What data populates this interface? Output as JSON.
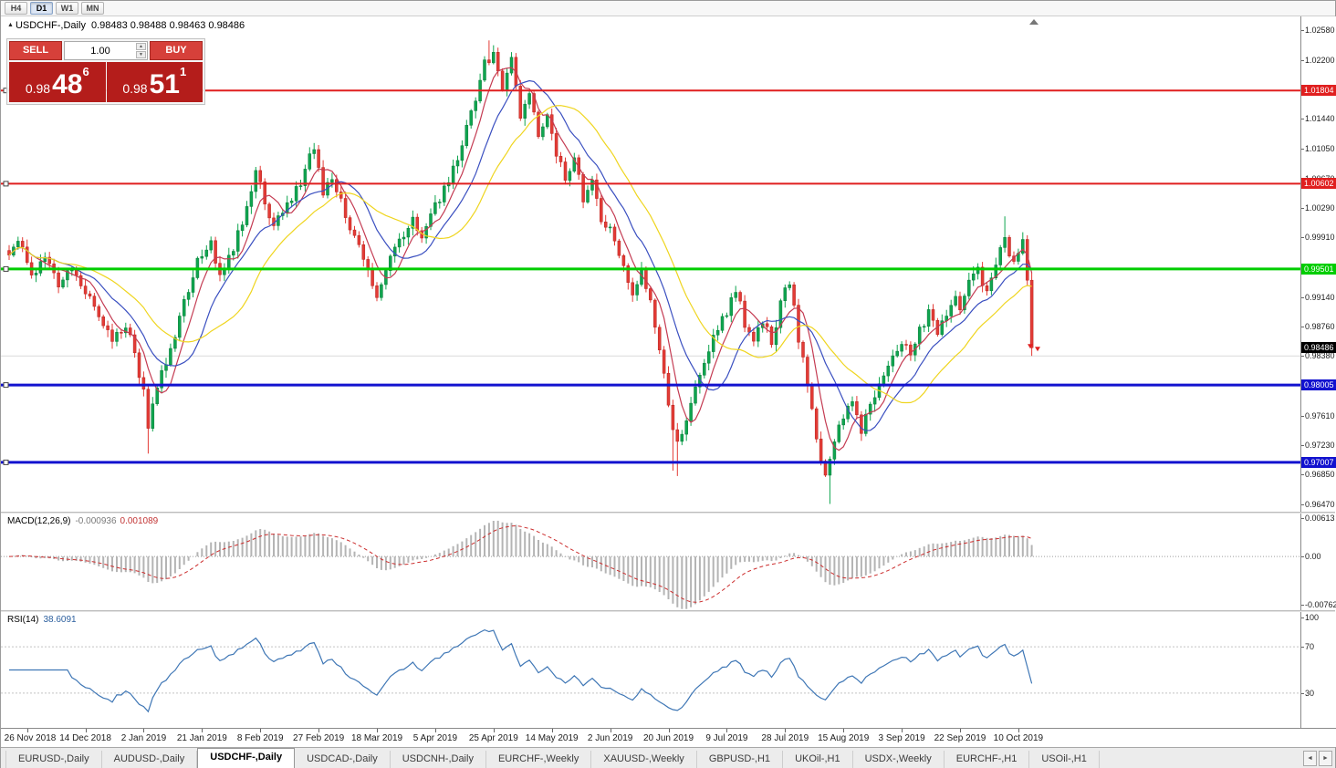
{
  "toolbar": {
    "timeframes": [
      "H4",
      "D1",
      "W1",
      "MN"
    ],
    "active": "D1"
  },
  "chart_header": {
    "symbol": "USDCHF-,Daily",
    "ohlc": "0.98483 0.98488 0.98463 0.98486"
  },
  "trade_panel": {
    "sell_label": "SELL",
    "buy_label": "BUY",
    "volume": "1.00",
    "sell_price": {
      "small": "0.98",
      "big": "48",
      "sup": "6"
    },
    "buy_price": {
      "small": "0.98",
      "big": "51",
      "sup": "1"
    }
  },
  "icons": {
    "spinner_up": "▲",
    "spinner_down": "▼",
    "collapse": "▲",
    "scroll_left": "◄",
    "scroll_right": "►",
    "end_marker": "▲"
  },
  "colors": {
    "candle_up": "#0fa54f",
    "candle_up_border": "#0a7a3a",
    "candle_down": "#e33b36",
    "candle_down_border": "#b5241f",
    "ma_fast_red": "#c43b52",
    "ma_mid_blue": "#3a4fc0",
    "ma_slow_yellow": "#efd51f",
    "level_red": "#e01f1f",
    "level_green": "#00cd00",
    "level_blue": "#1212cf",
    "minor_gray": "#d9d9d9",
    "macd_hist": "#b4b4b4",
    "macd_signal": "#cc2e2e",
    "rsi_line": "#3e76b5",
    "badge_black": "#000000",
    "arrow_red": "#e02020"
  },
  "indicators": {
    "macd": {
      "title": "MACD(12,26,9)",
      "value_main": "-0.000936",
      "value_signal": "0.001089",
      "fast": 12,
      "slow": 26,
      "signal": 9,
      "scale_labels": [
        {
          "v": 0.00613,
          "t": "0.00613"
        },
        {
          "v": 0,
          "t": "0.00"
        },
        {
          "v": -0.00762,
          "t": "-0.00762"
        }
      ],
      "view_max": 0.0068,
      "view_min": -0.0085
    },
    "rsi": {
      "title": "RSI(14)",
      "value": "38.6091",
      "period": 14,
      "levels": [
        70,
        30
      ],
      "scale_labels": [
        {
          "v": 100,
          "t": "100"
        },
        {
          "v": 70,
          "t": "70"
        },
        {
          "v": 30,
          "t": "30"
        }
      ],
      "range": [
        0,
        100
      ]
    }
  },
  "chart_data": {
    "type": "candlestick",
    "symbol": "USDCHF",
    "timeframe": "Daily",
    "bars_total": 229,
    "last_price": 0.98486,
    "price_range": {
      "min": 0.9637,
      "max": 1.0276
    },
    "y_ticks": [
      1.0258,
      1.022,
      1.0144,
      1.0105,
      1.0067,
      1.0029,
      0.9991,
      0.9914,
      0.9876,
      0.9838,
      0.9761,
      0.9723,
      0.9685,
      0.9647
    ],
    "levels": [
      {
        "price": 1.01804,
        "label": "1.01804",
        "color": "#e01f1f",
        "width": 2,
        "badge": true
      },
      {
        "price": 1.00602,
        "label": "1.00602",
        "color": "#e01f1f",
        "width": 2,
        "badge": true
      },
      {
        "price": 0.99501,
        "label": "0.99501",
        "color": "#00cd00",
        "width": 3,
        "badge": true
      },
      {
        "price": 0.98005,
        "label": "0.98005",
        "color": "#1212cf",
        "width": 3,
        "badge": true
      },
      {
        "price": 0.97007,
        "label": "0.97007",
        "color": "#1212cf",
        "width": 3,
        "badge": true
      },
      {
        "price": 0.9838,
        "label": "",
        "color": "#d9d9d9",
        "width": 1,
        "badge": false
      }
    ],
    "moving_averages": [
      {
        "period": 6,
        "color": "#c43b52"
      },
      {
        "period": 13,
        "color": "#3a4fc0"
      },
      {
        "period": 24,
        "color": "#efd51f"
      }
    ],
    "x_axis": {
      "labels": [
        "26 Nov 2018",
        "14 Dec 2018",
        "2 Jan 2019",
        "21 Jan 2019",
        "8 Feb 2019",
        "27 Feb 2019",
        "18 Mar 2019",
        "5 Apr 2019",
        "25 Apr 2019",
        "14 May 2019",
        "2 Jun 2019",
        "20 Jun 2019",
        "9 Jul 2019",
        "28 Jul 2019",
        "15 Aug 2019",
        "3 Sep 2019",
        "22 Sep 2019",
        "10 Oct 2019"
      ],
      "label_indices": [
        4,
        17,
        30,
        43,
        56,
        69,
        82,
        95,
        108,
        121,
        134,
        147,
        160,
        173,
        186,
        199,
        212,
        225
      ]
    },
    "price_anchors": [
      [
        0,
        0.9968
      ],
      [
        2,
        0.999
      ],
      [
        5,
        0.994
      ],
      [
        8,
        0.9968
      ],
      [
        11,
        0.993
      ],
      [
        14,
        0.9955
      ],
      [
        17,
        0.992
      ],
      [
        20,
        0.989
      ],
      [
        23,
        0.9862
      ],
      [
        26,
        0.988
      ],
      [
        28,
        0.984
      ],
      [
        30,
        0.979
      ],
      [
        31,
        0.9742
      ],
      [
        33,
        0.98
      ],
      [
        36,
        0.9845
      ],
      [
        39,
        0.9905
      ],
      [
        42,
        0.996
      ],
      [
        45,
        0.9985
      ],
      [
        47,
        0.994
      ],
      [
        50,
        0.9975
      ],
      [
        53,
        1.003
      ],
      [
        55,
        1.008
      ],
      [
        57,
        1.004
      ],
      [
        59,
        1.0005
      ],
      [
        62,
        1.0035
      ],
      [
        65,
        1.0058
      ],
      [
        68,
        1.011
      ],
      [
        70,
        1.005
      ],
      [
        72,
        1.0065
      ],
      [
        75,
        1.002
      ],
      [
        78,
        0.9975
      ],
      [
        81,
        0.993
      ],
      [
        82,
        0.9912
      ],
      [
        84,
        0.995
      ],
      [
        87,
        0.9985
      ],
      [
        90,
        1.002
      ],
      [
        92,
        0.999
      ],
      [
        95,
        1.003
      ],
      [
        98,
        1.0065
      ],
      [
        101,
        1.011
      ],
      [
        104,
        1.017
      ],
      [
        106,
        1.0215
      ],
      [
        108,
        1.023
      ],
      [
        110,
        1.0175
      ],
      [
        112,
        1.022
      ],
      [
        114,
        1.015
      ],
      [
        116,
        1.018
      ],
      [
        118,
        1.012
      ],
      [
        120,
        1.015
      ],
      [
        122,
        1.01
      ],
      [
        124,
        1.007
      ],
      [
        126,
        1.0095
      ],
      [
        128,
        1.004
      ],
      [
        130,
        1.0065
      ],
      [
        132,
        1.001
      ],
      [
        134,
        1.0
      ],
      [
        136,
        0.9965
      ],
      [
        139,
        0.992
      ],
      [
        141,
        0.995
      ],
      [
        143,
        0.9905
      ],
      [
        145,
        0.985
      ],
      [
        147,
        0.977
      ],
      [
        149,
        0.9725
      ],
      [
        151,
        0.976
      ],
      [
        154,
        0.9815
      ],
      [
        157,
        0.986
      ],
      [
        160,
        0.9895
      ],
      [
        162,
        0.9925
      ],
      [
        164,
        0.988
      ],
      [
        166,
        0.9855
      ],
      [
        168,
        0.9885
      ],
      [
        170,
        0.9855
      ],
      [
        172,
        0.9905
      ],
      [
        174,
        0.9935
      ],
      [
        176,
        0.986
      ],
      [
        178,
        0.98
      ],
      [
        180,
        0.973
      ],
      [
        182,
        0.968
      ],
      [
        184,
        0.9725
      ],
      [
        186,
        0.976
      ],
      [
        188,
        0.9785
      ],
      [
        190,
        0.974
      ],
      [
        192,
        0.9775
      ],
      [
        194,
        0.9805
      ],
      [
        196,
        0.983
      ],
      [
        199,
        0.9855
      ],
      [
        201,
        0.984
      ],
      [
        203,
        0.987
      ],
      [
        205,
        0.9895
      ],
      [
        207,
        0.9865
      ],
      [
        209,
        0.989
      ],
      [
        211,
        0.992
      ],
      [
        212,
        0.99
      ],
      [
        214,
        0.993
      ],
      [
        216,
        0.995
      ],
      [
        218,
        0.992
      ],
      [
        220,
        0.9955
      ],
      [
        222,
        0.999
      ],
      [
        224,
        0.9955
      ],
      [
        225,
        0.9975
      ],
      [
        226,
        0.9985
      ],
      [
        227,
        0.993
      ],
      [
        228,
        0.98486
      ]
    ],
    "wick_overrides": {
      "31": {
        "low": 0.9712
      },
      "107": {
        "high": 1.0245
      },
      "148": {
        "low": 0.969
      },
      "149": {
        "low": 0.9683
      },
      "183": {
        "low": 0.9647
      },
      "222": {
        "high": 1.0018
      },
      "228": {
        "low": 0.9838
      }
    }
  },
  "tabs": {
    "active_index": 2,
    "items": [
      "EURUSD-,Daily",
      "AUDUSD-,Daily",
      "USDCHF-,Daily",
      "USDCAD-,Daily",
      "USDCNH-,Daily",
      "EURCHF-,Weekly",
      "XAUUSD-,Weekly",
      "GBPUSD-,H1",
      "UKOil-,H1",
      "USDX-,Weekly",
      "EURCHF-,H1",
      "USOil-,H1"
    ]
  }
}
